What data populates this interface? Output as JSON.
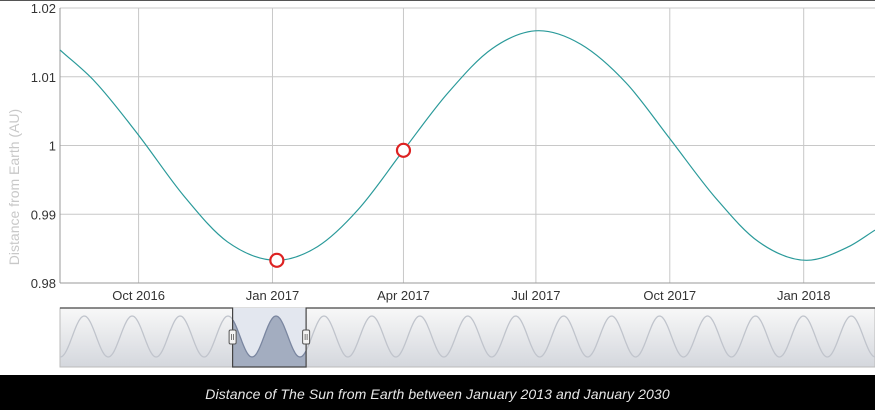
{
  "chart_data": {
    "type": "line",
    "ylabel": "Distance from Earth (AU)",
    "ylim": [
      0.98,
      1.02
    ],
    "y_ticks": [
      "0.98",
      "0.99",
      "1",
      "1.01",
      "1.02"
    ],
    "x_ticks": [
      "Oct 2016",
      "Jan 2017",
      "Apr 2017",
      "Jul 2017",
      "Oct 2017",
      "Jan 2018"
    ],
    "xlim": [
      "2016-08-08",
      "2018-02-19"
    ],
    "grid": true,
    "series": [
      {
        "color": "#2a9a9a",
        "x": [
          "2016-08-08",
          "2016-09-01",
          "2016-10-01",
          "2016-11-01",
          "2016-12-01",
          "2017-01-04",
          "2017-02-01",
          "2017-03-01",
          "2017-04-01",
          "2017-05-01",
          "2017-06-01",
          "2017-07-03",
          "2017-08-01",
          "2017-09-01",
          "2017-10-01",
          "2017-11-01",
          "2017-12-01",
          "2018-01-03",
          "2018-02-01",
          "2018-02-19"
        ],
        "values": [
          1.0139,
          1.0093,
          1.0015,
          0.9927,
          0.986,
          0.9833,
          0.9853,
          0.9907,
          0.9993,
          1.0075,
          1.0141,
          1.0167,
          1.0147,
          1.0091,
          1.001,
          0.9925,
          0.986,
          0.9833,
          0.9853,
          0.9877
        ]
      }
    ],
    "markers": [
      {
        "x": "2017-01-04",
        "y": 0.9833,
        "color": "#dd2222"
      },
      {
        "x": "2017-04-01",
        "y": 0.9993,
        "color": "#dd2222"
      }
    ]
  },
  "navigator": {
    "range_start": "2013-01-01",
    "range_end": "2030-01-01",
    "selected_start": "2016-08-08",
    "selected_end": "2018-02-19"
  },
  "caption": "Distance of The Sun from Earth between January 2013 and January 2030"
}
